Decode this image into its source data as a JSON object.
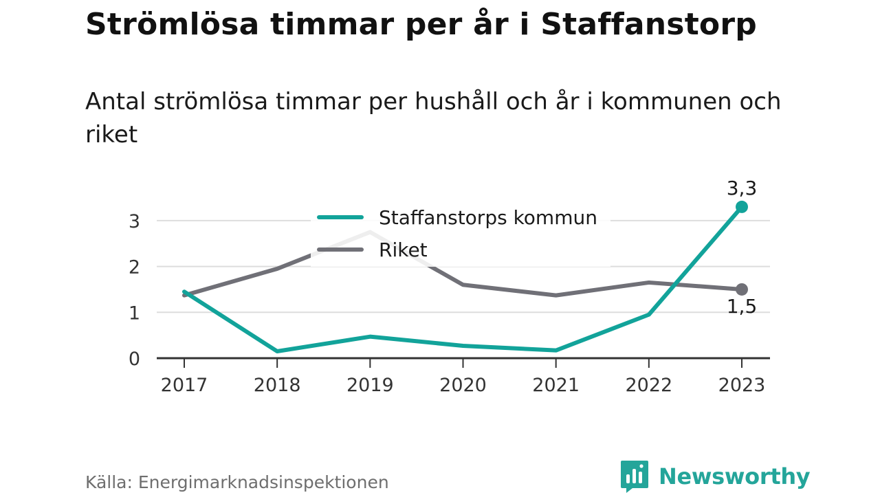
{
  "header": {
    "title": "Strömlösa timmar per år i Staffanstorp",
    "subtitle": "Antal strömlösa timmar per hushåll och år i kommunen och riket"
  },
  "footer": {
    "source": "Källa: Energimarknadsinspektionen",
    "brand": "Newsworthy",
    "brand_icon": "newsworthy-logo-icon",
    "brand_color": "#24a59a"
  },
  "chart_data": {
    "type": "line",
    "title": "Strömlösa timmar per år i Staffanstorp",
    "subtitle": "Antal strömlösa timmar per hushåll och år i kommunen och riket",
    "xlabel": "",
    "ylabel": "",
    "categories": [
      "2017",
      "2018",
      "2019",
      "2020",
      "2021",
      "2022",
      "2023"
    ],
    "y_ticks": [
      "0",
      "1",
      "2",
      "3"
    ],
    "ylim": [
      0,
      3.5
    ],
    "grid": true,
    "legend_position": "top-center",
    "series": [
      {
        "name": "Staffanstorps kommun",
        "color": "#12a39a",
        "values": [
          1.45,
          0.15,
          0.47,
          0.27,
          0.17,
          0.95,
          3.3
        ],
        "end_label": "3,3"
      },
      {
        "name": "Riket",
        "color": "#707077",
        "values": [
          1.37,
          1.95,
          2.75,
          1.6,
          1.37,
          1.65,
          1.5
        ],
        "end_label": "1,5"
      }
    ],
    "source": "Källa: Energimarknadsinspektionen"
  }
}
